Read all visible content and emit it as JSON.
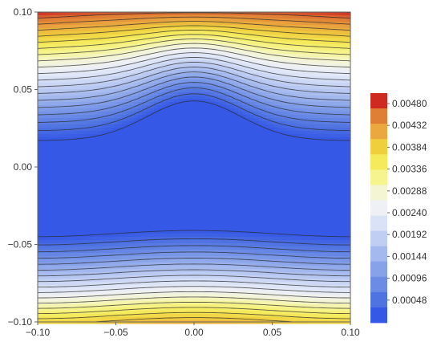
{
  "chart_data": {
    "type": "heatmap",
    "subtype": "filled-contour",
    "title": "",
    "xlabel": "",
    "ylabel": "",
    "xlim": [
      -0.1,
      0.1
    ],
    "ylim": [
      -0.1,
      0.1
    ],
    "x_ticks": [
      "−0.10",
      "−0.05",
      "0.00",
      "0.05",
      "0.10"
    ],
    "y_ticks": [
      "−0.10",
      "−0.05",
      "0.00",
      "0.05",
      "0.10"
    ],
    "x_tick_values": [
      -0.1,
      -0.05,
      0,
      0.05,
      0.1
    ],
    "y_tick_values": [
      -0.1,
      -0.05,
      0,
      0.05,
      0.1
    ],
    "contour_levels": [
      0.00024,
      0.00048,
      0.00072,
      0.00096,
      0.0012,
      0.00144,
      0.00168,
      0.00192,
      0.00216,
      0.0024,
      0.00264,
      0.00288,
      0.00312,
      0.00336,
      0.0036,
      0.00384,
      0.00408,
      0.00432,
      0.00456,
      0.0048
    ],
    "legend": {
      "position": "right",
      "labels": [
        "0.00480",
        "0.00432",
        "0.00384",
        "0.00336",
        "0.00288",
        "0.00240",
        "0.00192",
        "0.00144",
        "0.00096",
        "0.00048"
      ],
      "colors": [
        "#ce2a22",
        "#df7f35",
        "#eba83e",
        "#f0cf3d",
        "#f5ea5a",
        "#f6f48e",
        "#f4f5d2",
        "#eef0f6",
        "#d9e2f7",
        "#c0cef3",
        "#a4b9ee",
        "#87a2e9",
        "#6b8be5",
        "#4f73e1",
        "#3558e6"
      ]
    },
    "grid": false,
    "field_description": "Minimum (~0.00024) over the central band y between about -0.043 and +0.017; values increase toward y=+0.10 (max ~0.0048 at top corners) and toward y=-0.10 (~0.0038); contours bend upward near x=0 in the upper half."
  }
}
